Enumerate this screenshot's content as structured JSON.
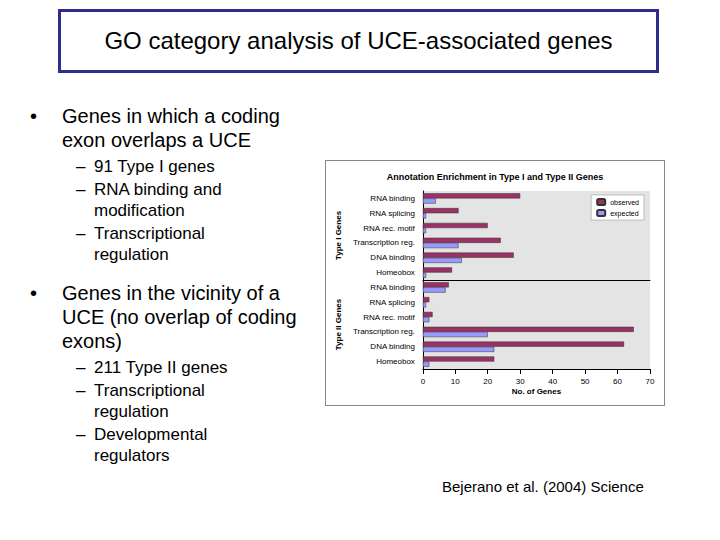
{
  "slide": {
    "title": "GO category analysis of UCE-associated genes",
    "bullets": [
      {
        "text": "Genes in which a coding exon overlaps a UCE",
        "sub": [
          "91 Type I genes",
          "RNA binding and modification",
          "Transcriptional regulation"
        ]
      },
      {
        "text": "Genes in the vicinity of a UCE (no overlap of coding exons)",
        "sub": [
          "211 Type II genes",
          "Transcriptional regulation",
          "Developmental regulators"
        ]
      }
    ],
    "citation": "Bejerano et al. (2004) Science"
  },
  "chart_data": {
    "type": "bar",
    "orientation": "horizontal",
    "title": "Annotation Enrichment in Type I and Type II Genes",
    "x_label": "No. of Genes",
    "xlim": [
      0,
      70
    ],
    "xticks": [
      0,
      10,
      20,
      30,
      40,
      50,
      60,
      70
    ],
    "grid": false,
    "legend": "upper right",
    "panels": [
      {
        "label": "Type I Genes",
        "categories": [
          "RNA binding",
          "RNA splicing",
          "RNA rec. motif",
          "Transcription reg.",
          "DNA binding",
          "Homeobox"
        ],
        "series": [
          {
            "name": "observed",
            "color": "#993366",
            "values": [
              30,
              11,
              20,
              24,
              28,
              9
            ]
          },
          {
            "name": "expected",
            "color": "#9999ff",
            "values": [
              4,
              1,
              1,
              11,
              12,
              1
            ]
          }
        ]
      },
      {
        "label": "Type II Genes",
        "categories": [
          "RNA binding",
          "RNA splicing",
          "RNA rec. motif",
          "Transcription reg.",
          "DNA binding",
          "Homeobox"
        ],
        "series": [
          {
            "name": "observed",
            "color": "#993366",
            "values": [
              8,
              2,
              3,
              65,
              62,
              22
            ]
          },
          {
            "name": "expected",
            "color": "#9999ff",
            "values": [
              7,
              1,
              2,
              20,
              22,
              2
            ]
          }
        ]
      }
    ]
  }
}
